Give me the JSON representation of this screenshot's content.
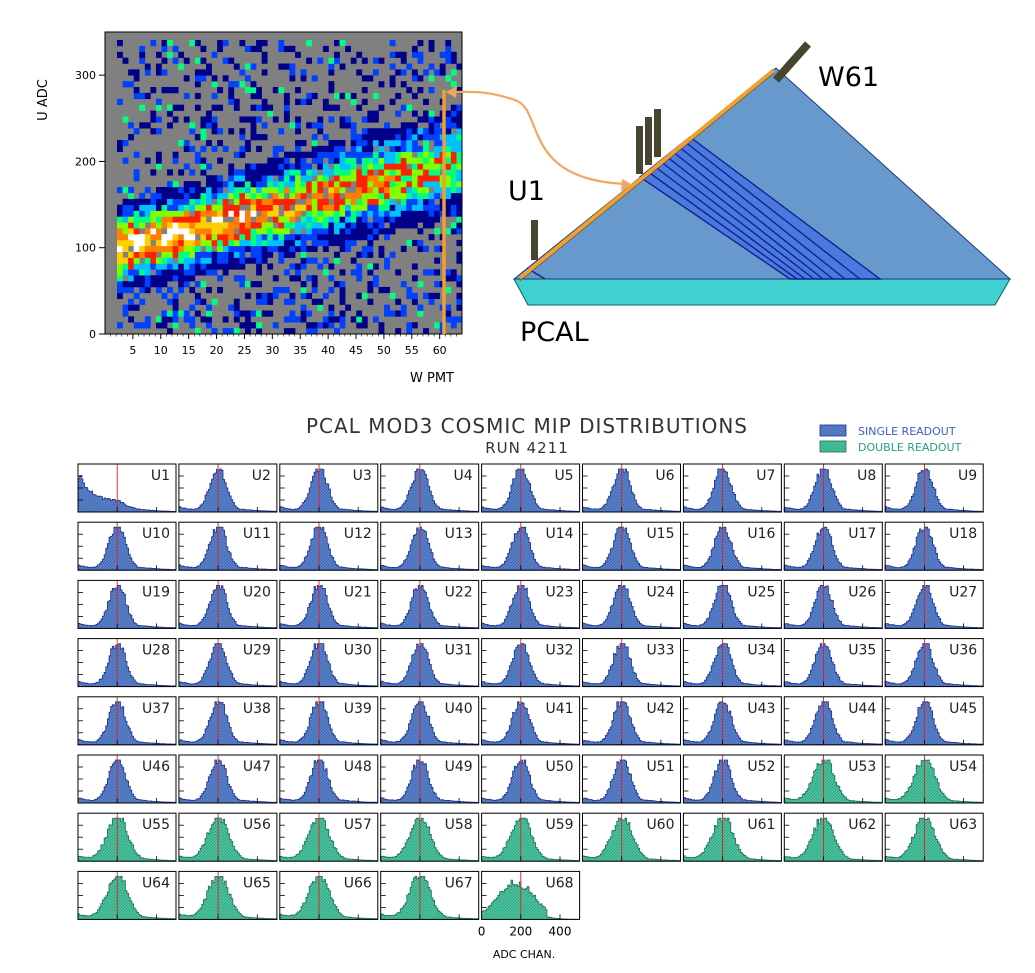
{
  "colors": {
    "single": "#5a82c8",
    "single_edge": "#1c2f8c",
    "double": "#4cc4a0",
    "double_edge": "#1c6e55",
    "marker": "#e02020",
    "legend_single_text": "#3a5fc0",
    "legend_double_text": "#28a080",
    "triangle_fill": "#6899cc",
    "base_fill": "#40d0d0",
    "fiber": "#f0a030",
    "pmt": "#454530",
    "arrow": "#f0a860"
  },
  "scatter": {
    "ylabel": "U ADC",
    "xlabel": "W PMT",
    "y_ticks": [
      "0",
      "100",
      "200",
      "300"
    ],
    "x_ticks": [
      "5",
      "10",
      "15",
      "20",
      "25",
      "30",
      "35",
      "40",
      "45",
      "50",
      "55",
      "60"
    ]
  },
  "diagram": {
    "label_w61": "W61",
    "label_u1": "U1",
    "label_pcal": "PCAL"
  },
  "grid": {
    "title": "PCAL MOD3 COSMIC MIP DISTRIBUTIONS",
    "subtitle": "RUN 4211",
    "legend_single": "SINGLE READOUT",
    "legend_double": "DOUBLE READOUT",
    "axis_ticks": [
      "0",
      "200",
      "400"
    ],
    "axis_label": "ADC CHAN."
  },
  "chart_data": [
    {
      "type": "heatmap",
      "xlabel": "W PMT",
      "ylabel": "U ADC",
      "x_range": [
        0,
        64
      ],
      "y_range": [
        0,
        350
      ],
      "x_ticks": [
        5,
        10,
        15,
        20,
        25,
        30,
        35,
        40,
        45,
        50,
        55,
        60
      ],
      "y_ticks": [
        0,
        100,
        200,
        300
      ],
      "trend": [
        [
          1,
          100
        ],
        [
          60,
          200
        ]
      ],
      "bins_x": 62,
      "bins_y": 50,
      "colormap": [
        "#808080",
        "#00008a",
        "#0040ff",
        "#00c0ff",
        "#00ff80",
        "#80ff00",
        "#ff2000",
        "#ff8000",
        "#ffd000",
        "#ffffff"
      ]
    },
    {
      "type": "bar",
      "title": "PCAL MOD3 COSMIC MIP DISTRIBUTIONS",
      "subtitle": "RUN 4211",
      "xlabel": "ADC CHAN.",
      "x_range": [
        0,
        500
      ],
      "x_ticks": [
        0,
        200,
        400
      ],
      "marker_x": 200,
      "legend": [
        "SINGLE READOUT",
        "DOUBLE READOUT"
      ],
      "panels": [
        {
          "name": "U1",
          "readout": "single"
        },
        {
          "name": "U2",
          "readout": "single"
        },
        {
          "name": "U3",
          "readout": "single"
        },
        {
          "name": "U4",
          "readout": "single"
        },
        {
          "name": "U5",
          "readout": "single"
        },
        {
          "name": "U6",
          "readout": "single"
        },
        {
          "name": "U7",
          "readout": "single"
        },
        {
          "name": "U8",
          "readout": "single"
        },
        {
          "name": "U9",
          "readout": "single"
        },
        {
          "name": "U10",
          "readout": "single"
        },
        {
          "name": "U11",
          "readout": "single"
        },
        {
          "name": "U12",
          "readout": "single"
        },
        {
          "name": "U13",
          "readout": "single"
        },
        {
          "name": "U14",
          "readout": "single"
        },
        {
          "name": "U15",
          "readout": "single"
        },
        {
          "name": "U16",
          "readout": "single"
        },
        {
          "name": "U17",
          "readout": "single"
        },
        {
          "name": "U18",
          "readout": "single"
        },
        {
          "name": "U19",
          "readout": "single"
        },
        {
          "name": "U20",
          "readout": "single"
        },
        {
          "name": "U21",
          "readout": "single"
        },
        {
          "name": "U22",
          "readout": "single"
        },
        {
          "name": "U23",
          "readout": "single"
        },
        {
          "name": "U24",
          "readout": "single"
        },
        {
          "name": "U25",
          "readout": "single"
        },
        {
          "name": "U26",
          "readout": "single"
        },
        {
          "name": "U27",
          "readout": "single"
        },
        {
          "name": "U28",
          "readout": "single"
        },
        {
          "name": "U29",
          "readout": "single"
        },
        {
          "name": "U30",
          "readout": "single"
        },
        {
          "name": "U31",
          "readout": "single"
        },
        {
          "name": "U32",
          "readout": "single"
        },
        {
          "name": "U33",
          "readout": "single"
        },
        {
          "name": "U34",
          "readout": "single"
        },
        {
          "name": "U35",
          "readout": "single"
        },
        {
          "name": "U36",
          "readout": "single"
        },
        {
          "name": "U37",
          "readout": "single"
        },
        {
          "name": "U38",
          "readout": "single"
        },
        {
          "name": "U39",
          "readout": "single"
        },
        {
          "name": "U40",
          "readout": "single"
        },
        {
          "name": "U41",
          "readout": "single"
        },
        {
          "name": "U42",
          "readout": "single"
        },
        {
          "name": "U43",
          "readout": "single"
        },
        {
          "name": "U44",
          "readout": "single"
        },
        {
          "name": "U45",
          "readout": "single"
        },
        {
          "name": "U46",
          "readout": "single"
        },
        {
          "name": "U47",
          "readout": "single"
        },
        {
          "name": "U48",
          "readout": "single"
        },
        {
          "name": "U49",
          "readout": "single"
        },
        {
          "name": "U50",
          "readout": "single"
        },
        {
          "name": "U51",
          "readout": "single"
        },
        {
          "name": "U52",
          "readout": "single"
        },
        {
          "name": "U53",
          "readout": "double"
        },
        {
          "name": "U54",
          "readout": "double"
        },
        {
          "name": "U55",
          "readout": "double"
        },
        {
          "name": "U56",
          "readout": "double"
        },
        {
          "name": "U57",
          "readout": "double"
        },
        {
          "name": "U58",
          "readout": "double"
        },
        {
          "name": "U59",
          "readout": "double"
        },
        {
          "name": "U60",
          "readout": "double"
        },
        {
          "name": "U61",
          "readout": "double"
        },
        {
          "name": "U62",
          "readout": "double"
        },
        {
          "name": "U63",
          "readout": "double"
        },
        {
          "name": "U64",
          "readout": "double"
        },
        {
          "name": "U65",
          "readout": "double"
        },
        {
          "name": "U66",
          "readout": "double"
        },
        {
          "name": "U67",
          "readout": "double"
        },
        {
          "name": "U68",
          "readout": "double"
        }
      ]
    }
  ]
}
